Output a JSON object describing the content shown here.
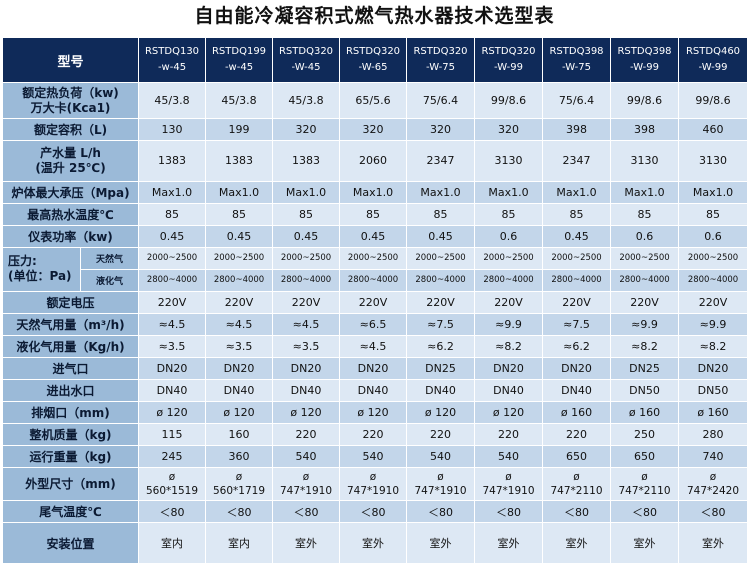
{
  "title": "自由能冷凝容积式燃气热水器技术选型表",
  "header": {
    "label": "型号",
    "models": [
      [
        "RSTDQ130",
        "-w-45"
      ],
      [
        "RSTDQ199",
        "-w-45"
      ],
      [
        "RSTDQ320",
        "-W-45"
      ],
      [
        "RSTDQ320",
        "-W-65"
      ],
      [
        "RSTDQ320",
        "-W-75"
      ],
      [
        "RSTDQ320",
        "-W-99"
      ],
      [
        "RSTDQ398",
        "-W-75"
      ],
      [
        "RSTDQ398",
        "-W-99"
      ],
      [
        "RSTDQ460",
        "-W-99"
      ]
    ]
  },
  "rows": [
    {
      "label": [
        "额定热负荷（kw)",
        "万大卡(Kca1)"
      ],
      "values": [
        "45/3.8",
        "45/3.8",
        "45/3.8",
        "65/5.6",
        "75/6.4",
        "99/8.6",
        "75/6.4",
        "99/8.6",
        "99/8.6"
      ]
    },
    {
      "label": [
        "额定容积（L)"
      ],
      "values": [
        "130",
        "199",
        "320",
        "320",
        "320",
        "320",
        "398",
        "398",
        "460"
      ]
    },
    {
      "label": [
        "产水量 L/h",
        "(温升 25℃)"
      ],
      "values": [
        "1383",
        "1383",
        "1383",
        "2060",
        "2347",
        "3130",
        "2347",
        "3130",
        "3130"
      ]
    },
    {
      "label": [
        "炉体最大承压（Mpa)"
      ],
      "values": [
        "Max1.0",
        "Max1.0",
        "Max1.0",
        "Max1.0",
        "Max1.0",
        "Max1.0",
        "Max1.0",
        "Max1.0",
        "Max1.0"
      ]
    },
    {
      "label": [
        "最高热水温度℃"
      ],
      "values": [
        "85",
        "85",
        "85",
        "85",
        "85",
        "85",
        "85",
        "85",
        "85"
      ]
    },
    {
      "label": [
        "仪表功率（kw)"
      ],
      "values": [
        "0.45",
        "0.45",
        "0.45",
        "0.45",
        "0.45",
        "0.6",
        "0.45",
        "0.6",
        "0.6"
      ]
    }
  ],
  "pressure": {
    "label": [
      "压力:",
      "(单位：Pa)"
    ],
    "natural_label": "天然气",
    "natural_values": [
      "2000~2500",
      "2000~2500",
      "2000~2500",
      "2000~2500",
      "2000~2500",
      "2000~2500",
      "2000~2500",
      "2000~2500",
      "2000~2500"
    ],
    "lpg_label": "液化气",
    "lpg_values": [
      "2800~4000",
      "2800~4000",
      "2800~4000",
      "2800~4000",
      "2800~4000",
      "2800~4000",
      "2800~4000",
      "2800~4000",
      "2800~4000"
    ]
  },
  "rows2": [
    {
      "label": [
        "额定电压"
      ],
      "values": [
        "220V",
        "220V",
        "220V",
        "220V",
        "220V",
        "220V",
        "220V",
        "220V",
        "220V"
      ]
    },
    {
      "label": [
        "天然气用量（m³/h)"
      ],
      "values": [
        "≈4.5",
        "≈4.5",
        "≈4.5",
        "≈6.5",
        "≈7.5",
        "≈9.9",
        "≈7.5",
        "≈9.9",
        "≈9.9"
      ]
    },
    {
      "label": [
        "液化气用量（Kg/h)"
      ],
      "values": [
        "≈3.5",
        "≈3.5",
        "≈3.5",
        "≈4.5",
        "≈6.2",
        "≈8.2",
        "≈6.2",
        "≈8.2",
        "≈8.2"
      ]
    },
    {
      "label": [
        "进气口"
      ],
      "values": [
        "DN20",
        "DN20",
        "DN20",
        "DN20",
        "DN25",
        "DN20",
        "DN20",
        "DN25",
        "DN20"
      ]
    },
    {
      "label": [
        "进出水口"
      ],
      "values": [
        "DN40",
        "DN40",
        "DN40",
        "DN40",
        "DN40",
        "DN40",
        "DN40",
        "DN50",
        "DN50"
      ]
    },
    {
      "label": [
        "排烟口（mm)"
      ],
      "values": [
        "ø 120",
        "ø 120",
        "ø 120",
        "ø 120",
        "ø 120",
        "ø 120",
        "ø 160",
        "ø 160",
        "ø 160"
      ]
    },
    {
      "label": [
        "整机质量（kg)"
      ],
      "values": [
        "115",
        "160",
        "220",
        "220",
        "220",
        "220",
        "220",
        "250",
        "280"
      ]
    },
    {
      "label": [
        "运行重量（kg)"
      ],
      "values": [
        "245",
        "360",
        "540",
        "540",
        "540",
        "540",
        "650",
        "650",
        "740"
      ]
    },
    {
      "label": [
        "外型尺寸（mm)"
      ],
      "values": [
        [
          "ø",
          "560*1519"
        ],
        [
          "ø",
          "560*1719"
        ],
        [
          "ø",
          "747*1910"
        ],
        [
          "ø",
          "747*1910"
        ],
        [
          "ø",
          "747*1910"
        ],
        [
          "ø",
          "747*1910"
        ],
        [
          "ø",
          "747*2110"
        ],
        [
          "ø",
          "747*2110"
        ],
        [
          "ø",
          "747*2420"
        ]
      ]
    },
    {
      "label": [
        "尾气温度℃"
      ],
      "values": [
        "＜80",
        "＜80",
        "＜80",
        "＜80",
        "＜80",
        "＜80",
        "＜80",
        "＜80",
        "＜80"
      ]
    },
    {
      "label": [
        "安装位置"
      ],
      "values": [
        "室内",
        "室内",
        "室外",
        "室外",
        "室外",
        "室外",
        "室外",
        "室外",
        "室外"
      ]
    }
  ]
}
